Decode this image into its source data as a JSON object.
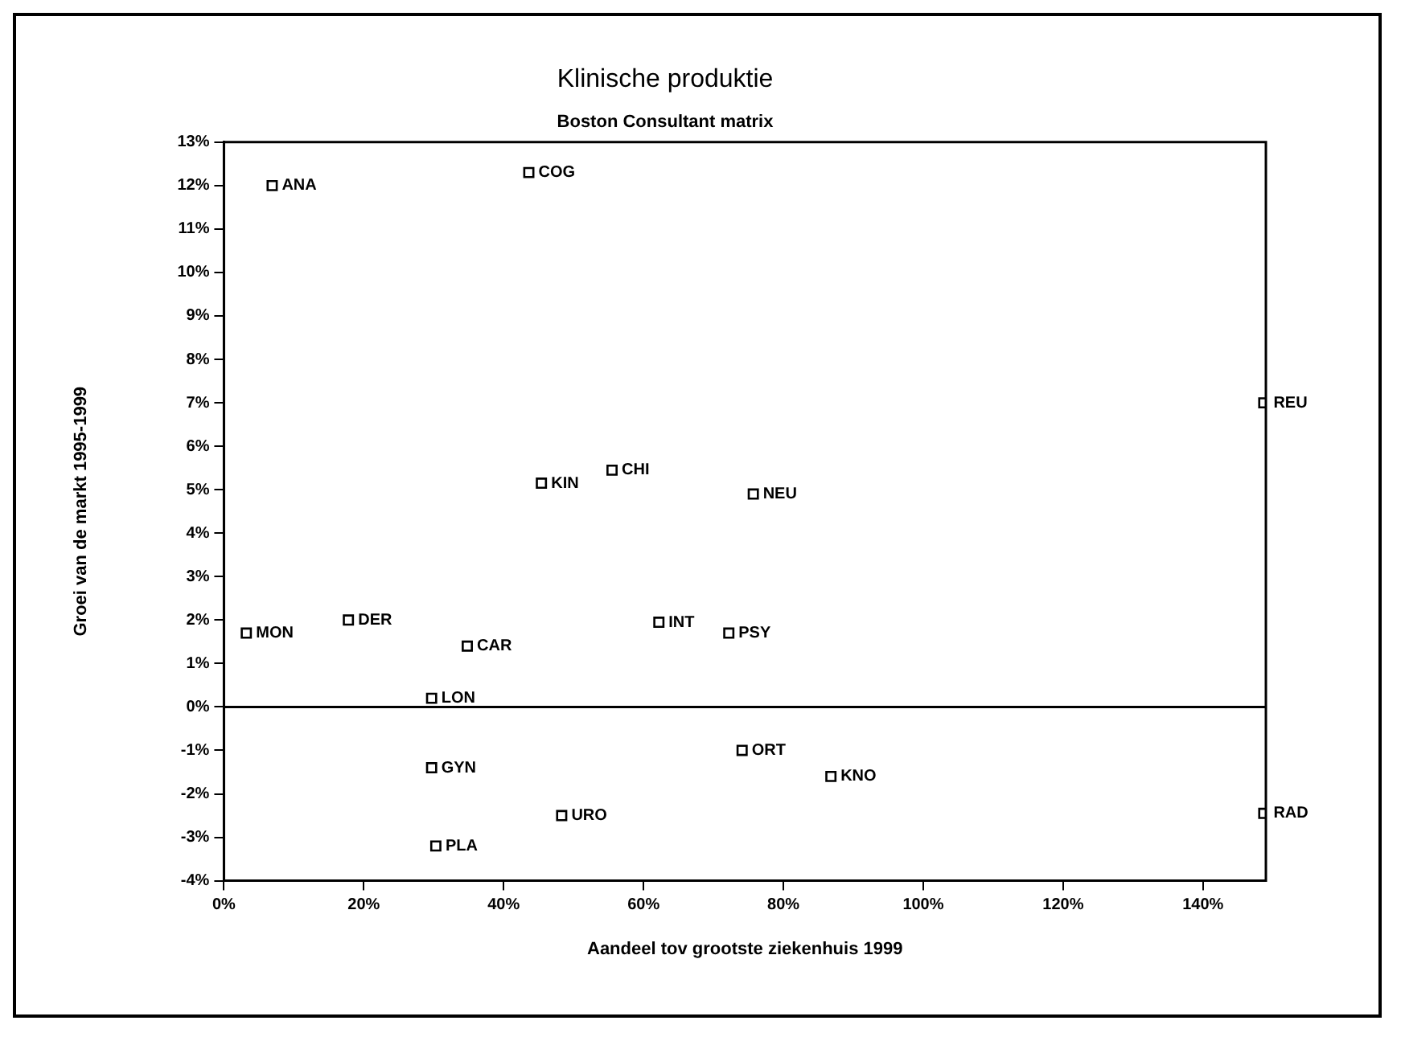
{
  "chart_data": {
    "type": "scatter",
    "title": "Klinische produktie",
    "subtitle": "Boston Consultant matrix",
    "xlabel": "Aandeel tov grootste ziekenhuis 1999",
    "ylabel": "Groei van de markt 1995-1999",
    "series": [
      {
        "color": "#000000",
        "x": [
          6.9,
          43.6,
          45.4,
          55.5,
          75.7,
          148.7,
          3.2,
          17.8,
          34.8,
          29.7,
          62.2,
          72.2,
          29.7,
          74.1,
          86.8,
          48.3,
          30.3,
          148.7
        ],
        "values": [
          12.0,
          12.3,
          5.15,
          5.45,
          4.9,
          7.0,
          1.7,
          2.0,
          1.4,
          0.2,
          1.95,
          1.7,
          -1.4,
          -1.0,
          -1.6,
          -2.5,
          -3.2,
          -2.45
        ]
      }
    ],
    "annotations": [
      {
        "text": "ANA",
        "x": 6.9,
        "y": 12.0
      },
      {
        "text": "COG",
        "x": 43.6,
        "y": 12.3
      },
      {
        "text": "KIN",
        "x": 45.4,
        "y": 5.15
      },
      {
        "text": "CHI",
        "x": 55.5,
        "y": 5.45
      },
      {
        "text": "NEU",
        "x": 75.7,
        "y": 4.9
      },
      {
        "text": "REU",
        "x": 148.7,
        "y": 7.0
      },
      {
        "text": "MON",
        "x": 3.2,
        "y": 1.7
      },
      {
        "text": "DER",
        "x": 17.8,
        "y": 2.0
      },
      {
        "text": "CAR",
        "x": 34.8,
        "y": 1.4
      },
      {
        "text": "LON",
        "x": 29.7,
        "y": 0.2
      },
      {
        "text": "INT",
        "x": 62.2,
        "y": 1.95
      },
      {
        "text": "PSY",
        "x": 72.2,
        "y": 1.7
      },
      {
        "text": "GYN",
        "x": 29.7,
        "y": -1.4
      },
      {
        "text": "ORT",
        "x": 74.1,
        "y": -1.0
      },
      {
        "text": "KNO",
        "x": 86.8,
        "y": -1.6
      },
      {
        "text": "URO",
        "x": 48.3,
        "y": -2.5
      },
      {
        "text": "PLA",
        "x": 30.3,
        "y": -3.2
      },
      {
        "text": "RAD",
        "x": 148.7,
        "y": -2.45
      }
    ],
    "xlim": [
      0,
      149
    ],
    "ylim": [
      -4,
      13
    ],
    "xticks": [
      {
        "value": 0,
        "label": "0%"
      },
      {
        "value": 20,
        "label": "20%"
      },
      {
        "value": 40,
        "label": "40%"
      },
      {
        "value": 60,
        "label": "60%"
      },
      {
        "value": 80,
        "label": "80%"
      },
      {
        "value": 100,
        "label": "100%"
      },
      {
        "value": 120,
        "label": "120%"
      },
      {
        "value": 140,
        "label": "140%"
      }
    ],
    "yticks": [
      {
        "value": -4,
        "label": "-4%"
      },
      {
        "value": -3,
        "label": "-3%"
      },
      {
        "value": -2,
        "label": "-2%"
      },
      {
        "value": -1,
        "label": "-1%"
      },
      {
        "value": 0,
        "label": "0%"
      },
      {
        "value": 1,
        "label": "1%"
      },
      {
        "value": 2,
        "label": "2%"
      },
      {
        "value": 3,
        "label": "3%"
      },
      {
        "value": 4,
        "label": "4%"
      },
      {
        "value": 5,
        "label": "5%"
      },
      {
        "value": 6,
        "label": "6%"
      },
      {
        "value": 7,
        "label": "7%"
      },
      {
        "value": 8,
        "label": "8%"
      },
      {
        "value": 9,
        "label": "9%"
      },
      {
        "value": 10,
        "label": "10%"
      },
      {
        "value": 11,
        "label": "11%"
      },
      {
        "value": 12,
        "label": "12%"
      },
      {
        "value": 13,
        "label": "13%"
      }
    ],
    "ref_lines": [
      {
        "axis": "y",
        "value": 0,
        "color": "#000000"
      }
    ],
    "grid": false,
    "legend": false,
    "marker": "square"
  }
}
